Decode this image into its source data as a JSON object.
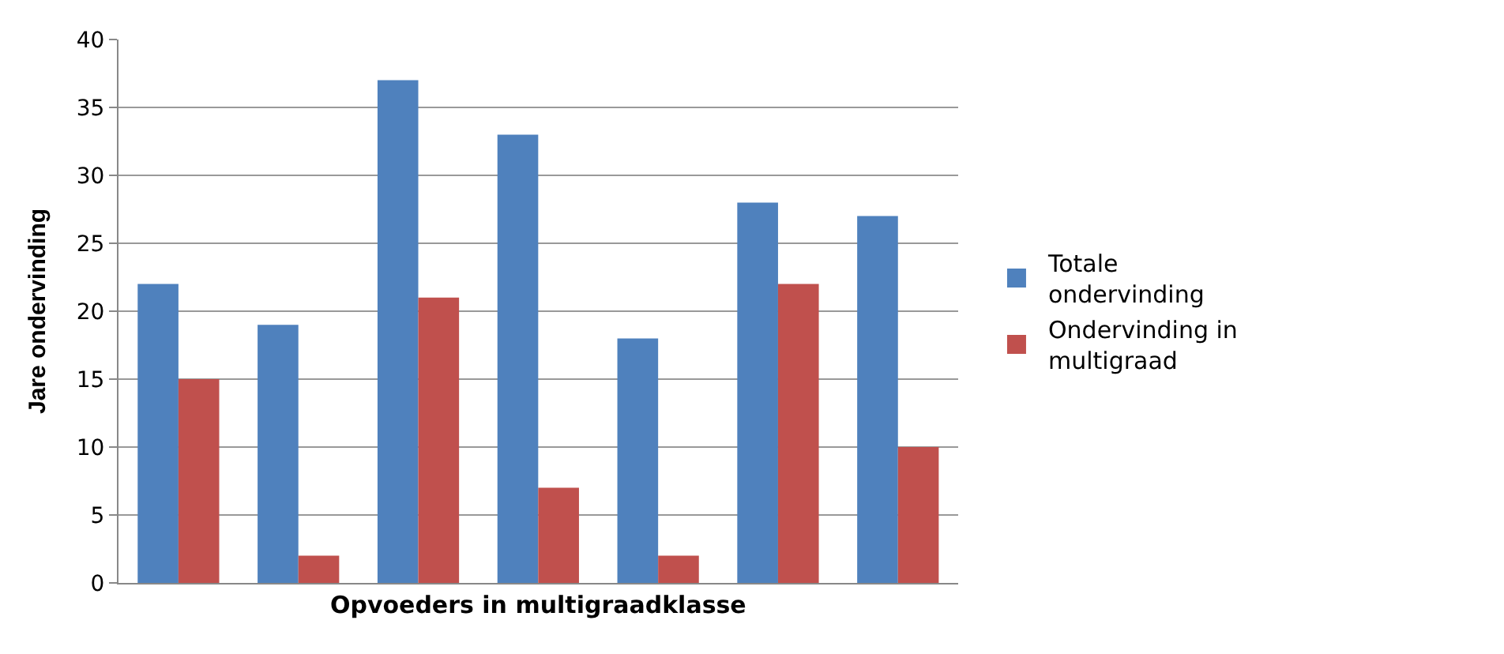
{
  "chart_data": {
    "type": "bar",
    "xlabel": "Opvoeders in multigraadklasse",
    "ylabel": "Jare ondervinding",
    "categories": [
      null,
      null,
      null,
      null,
      null,
      null,
      null
    ],
    "series": [
      {
        "name": "Totale ondervinding",
        "color": "#4f81bd",
        "values": [
          22,
          19,
          37,
          33,
          18,
          28,
          27
        ]
      },
      {
        "name": "Ondervinding in multigraad",
        "color": "#c0504d",
        "values": [
          15,
          2,
          21,
          7,
          2,
          22,
          10
        ]
      }
    ],
    "ylim": [
      0,
      40
    ],
    "yticks": [
      0,
      5,
      10,
      15,
      20,
      25,
      30,
      35,
      40
    ],
    "grid": "y",
    "legend": "right"
  }
}
